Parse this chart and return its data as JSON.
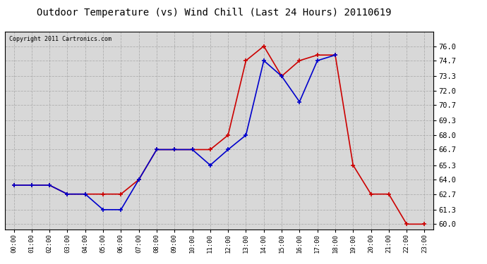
{
  "title": "Outdoor Temperature (vs) Wind Chill (Last 24 Hours) 20110619",
  "copyright": "Copyright 2011 Cartronics.com",
  "hours": [
    "00:00",
    "01:00",
    "02:00",
    "03:00",
    "04:00",
    "05:00",
    "06:00",
    "07:00",
    "08:00",
    "09:00",
    "10:00",
    "11:00",
    "12:00",
    "13:00",
    "14:00",
    "15:00",
    "16:00",
    "17:00",
    "18:00",
    "19:00",
    "20:00",
    "21:00",
    "22:00",
    "23:00"
  ],
  "temp": [
    63.5,
    63.5,
    63.5,
    62.7,
    62.7,
    62.7,
    62.7,
    64.0,
    66.7,
    66.7,
    66.7,
    66.7,
    68.0,
    74.7,
    76.0,
    73.3,
    74.7,
    75.2,
    75.2,
    65.3,
    62.7,
    62.7,
    60.0,
    60.0
  ],
  "windchill": [
    63.5,
    63.5,
    63.5,
    62.7,
    62.7,
    61.3,
    61.3,
    64.0,
    66.7,
    66.7,
    66.7,
    65.3,
    66.7,
    68.0,
    74.7,
    73.3,
    71.0,
    74.7,
    75.2,
    null,
    null,
    null,
    null,
    null
  ],
  "temp_color": "#cc0000",
  "windchill_color": "#0000cc",
  "ylim_min": 59.5,
  "ylim_max": 77.3,
  "yticks": [
    60.0,
    61.3,
    62.7,
    64.0,
    65.3,
    66.7,
    68.0,
    69.3,
    70.7,
    72.0,
    73.3,
    74.7,
    76.0
  ],
  "background_color": "#d8d8d8",
  "grid_color": "#aaaaaa",
  "title_fontsize": 10,
  "copyright_fontsize": 6,
  "fig_width": 6.9,
  "fig_height": 3.75,
  "fig_dpi": 100
}
